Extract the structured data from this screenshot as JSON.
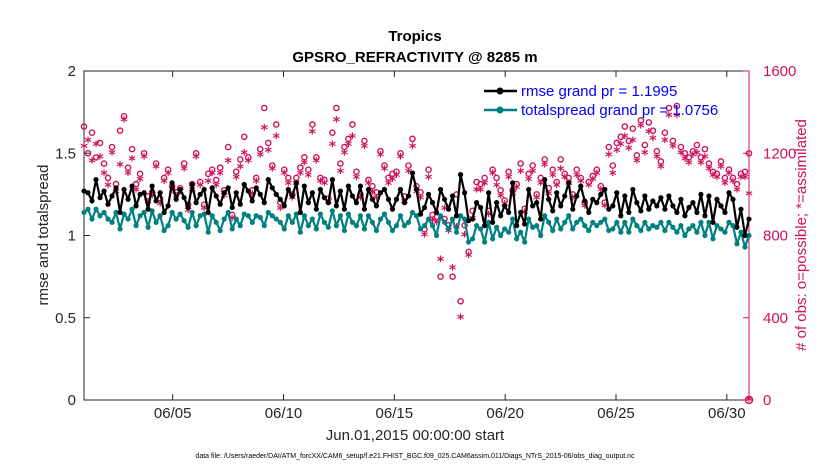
{
  "chart_data": {
    "type": "line",
    "title": "Tropics",
    "subtitle": "GPSRO_REFRACTIVITY @ 8285 m",
    "xlabel": "Jun.01,2015 00:00:00 start",
    "ylabel": "rmse and totalspread",
    "ylabel_right": "# of obs: o=possible; *=assimilated",
    "xlim": [
      1,
      31
    ],
    "ylim": [
      0,
      2
    ],
    "ylim_right": [
      0,
      1600
    ],
    "x_tick_values": [
      5,
      10,
      15,
      20,
      25,
      30
    ],
    "x_tick_labels": [
      "06/05",
      "06/10",
      "06/15",
      "06/20",
      "06/25",
      "06/30"
    ],
    "y_tick_labels": [
      "0",
      "0.5",
      "1",
      "1.5",
      "2"
    ],
    "y_tick_labels_right": [
      "0",
      "400",
      "800",
      "1200",
      "1600"
    ],
    "footer": "data file: /Users/raeder/DAI/ATM_forcXX/CAM6_setup/f.e21.FHIST_BGC.f09_025.CAM6assim.011/Diags_NTrS_2015-06/obs_diag_output.nc",
    "colors": {
      "rmse": "#000000",
      "spread": "#008080",
      "obs": "#d0105a",
      "legend_text": "#0000ff"
    },
    "series": [
      {
        "name": "rmse grand pr = 1.1995",
        "marker": "filled-circle",
        "color": "#000000",
        "values": [
          1.27,
          1.26,
          1.21,
          1.34,
          1.23,
          1.27,
          1.19,
          1.24,
          1.29,
          1.14,
          1.28,
          1.22,
          1.3,
          1.18,
          1.25,
          1.26,
          1.16,
          1.3,
          1.21,
          1.26,
          1.14,
          1.18,
          1.32,
          1.22,
          1.28,
          1.23,
          1.17,
          1.31,
          1.2,
          1.25,
          1.28,
          1.14,
          1.29,
          1.24,
          1.19,
          1.26,
          1.29,
          1.17,
          1.26,
          1.19,
          1.31,
          1.27,
          1.21,
          1.29,
          1.25,
          1.2,
          1.34,
          1.29,
          1.25,
          1.22,
          1.18,
          1.28,
          1.24,
          1.32,
          1.14,
          1.3,
          1.2,
          1.26,
          1.16,
          1.28,
          1.23,
          1.2,
          1.34,
          1.18,
          1.27,
          1.16,
          1.3,
          1.24,
          1.2,
          1.3,
          1.16,
          1.28,
          1.22,
          1.18,
          1.26,
          1.28,
          1.22,
          1.16,
          1.22,
          1.28,
          1.2,
          1.24,
          1.38,
          1.28,
          1.13,
          1.17,
          1.25,
          1.2,
          1.14,
          1.28,
          1.22,
          1.16,
          1.24,
          1.12,
          1.37,
          1.26,
          1.09,
          1.1,
          1.2,
          1.17,
          1.06,
          1.26,
          1.08,
          1.2,
          1.12,
          1.18,
          1.14,
          1.32,
          1.06,
          1.14,
          1.07,
          1.28,
          1.18,
          1.2,
          1.1,
          1.34,
          1.22,
          1.15,
          1.26,
          1.18,
          1.24,
          1.32,
          1.16,
          1.24,
          1.3,
          1.21,
          1.14,
          1.22,
          1.2,
          1.25,
          1.28,
          1.16,
          1.18,
          1.26,
          1.12,
          1.24,
          1.14,
          1.28,
          1.2,
          1.15,
          1.24,
          1.16,
          1.21,
          1.18,
          1.23,
          1.16,
          1.24,
          1.18,
          1.14,
          1.22,
          1.12,
          1.17,
          1.2,
          1.14,
          1.25,
          1.12,
          1.24,
          1.08,
          1.22,
          1.18,
          1.14,
          1.26,
          1.22,
          1.05,
          1.16,
          1.0,
          1.1
        ]
      },
      {
        "name": "totalspread grand pr = 1.0756",
        "marker": "filled-circle",
        "color": "#008080",
        "values": [
          1.14,
          1.16,
          1.1,
          1.16,
          1.12,
          1.14,
          1.1,
          1.08,
          1.14,
          1.04,
          1.13,
          1.1,
          1.16,
          1.06,
          1.12,
          1.14,
          1.05,
          1.15,
          1.08,
          1.12,
          1.03,
          1.06,
          1.14,
          1.1,
          1.13,
          1.09,
          1.05,
          1.14,
          1.06,
          1.12,
          1.13,
          1.02,
          1.12,
          1.08,
          1.03,
          1.1,
          1.14,
          1.04,
          1.1,
          1.06,
          1.13,
          1.12,
          1.08,
          1.12,
          1.11,
          1.06,
          1.14,
          1.12,
          1.1,
          1.08,
          1.04,
          1.12,
          1.08,
          1.13,
          1.02,
          1.12,
          1.06,
          1.1,
          1.04,
          1.13,
          1.08,
          1.05,
          1.15,
          1.06,
          1.12,
          1.03,
          1.13,
          1.08,
          1.06,
          1.12,
          1.04,
          1.12,
          1.08,
          1.03,
          1.1,
          1.13,
          1.08,
          1.03,
          1.06,
          1.12,
          1.06,
          1.08,
          1.14,
          1.12,
          1.04,
          1.06,
          1.1,
          1.06,
          1.0,
          1.12,
          1.08,
          1.04,
          1.1,
          1.02,
          1.12,
          1.1,
          0.96,
          0.98,
          1.06,
          1.04,
          0.96,
          1.08,
          0.98,
          1.05,
          1.0,
          1.04,
          1.02,
          1.1,
          0.98,
          1.02,
          0.96,
          1.1,
          1.05,
          1.06,
          1.0,
          1.12,
          1.08,
          1.03,
          1.1,
          1.04,
          1.08,
          1.12,
          1.04,
          1.08,
          1.1,
          1.06,
          1.03,
          1.08,
          1.06,
          1.08,
          1.1,
          1.03,
          1.04,
          1.08,
          1.02,
          1.08,
          1.02,
          1.1,
          1.06,
          1.03,
          1.08,
          1.04,
          1.06,
          1.05,
          1.08,
          1.03,
          1.08,
          1.05,
          1.02,
          1.06,
          1.0,
          1.04,
          1.06,
          1.02,
          1.08,
          1.0,
          1.08,
          0.98,
          1.06,
          1.04,
          1.02,
          1.08,
          1.06,
          0.95,
          1.02,
          0.93,
          1.0
        ]
      },
      {
        "name": "obs possible",
        "axis": "right",
        "marker": "o",
        "color": "#d0105a",
        "values": [
          1330,
          1200,
          1300,
          1180,
          1250,
          1150,
          1080,
          1230,
          1050,
          1310,
          1380,
          1130,
          1220,
          1050,
          1100,
          1200,
          990,
          1010,
          1150,
          980,
          1080,
          1120,
          1040,
          1010,
          1030,
          1150,
          950,
          1050,
          1200,
          1060,
          950,
          1100,
          1120,
          1070,
          1130,
          1020,
          1230,
          900,
          1110,
          1170,
          1280,
          1180,
          1020,
          1080,
          1220,
          1420,
          1250,
          1140,
          1340,
          960,
          1120,
          1080,
          1000,
          1080,
          1130,
          1180,
          1120,
          1340,
          1180,
          1080,
          1070,
          980,
          1300,
          1420,
          1150,
          1230,
          1270,
          1340,
          1110,
          1000,
          1260,
          1070,
          1040,
          1010,
          1210,
          1140,
          1080,
          1100,
          1110,
          1200,
          990,
          1140,
          1270,
          1040,
          1010,
          830,
          1120,
          900,
          890,
          600,
          880,
          850,
          600,
          1000,
          480,
          850,
          720,
          920,
          1060,
          1050,
          1080,
          920,
          1120,
          1080,
          1020,
          970,
          1110,
          1020,
          1050,
          1150,
          930,
          1100,
          1140,
          1000,
          1080,
          1170,
          1030,
          1120,
          1060,
          1170,
          1100,
          1080,
          1000,
          1120,
          1080,
          960,
          1060,
          1090,
          1120,
          1040,
          960,
          1230,
          1140,
          1250,
          1280,
          1330,
          1260,
          1320,
          1190,
          1360,
          1240,
          1350,
          1310,
          1210,
          1160,
          1300,
          1420,
          1260,
          1430,
          1230,
          1200,
          1180,
          1210,
          1240,
          1180,
          1220,
          1150,
          1110,
          1100,
          1160,
          1080,
          1120,
          1080,
          1050,
          1100,
          1110,
          1200
        ]
      },
      {
        "name": "obs assimilated",
        "axis": "right",
        "marker": "*",
        "color": "#d0105a",
        "values": [
          1230,
          1260,
          1160,
          1240,
          1180,
          1100,
          1040,
          1200,
          1010,
          1140,
          1360,
          1100,
          1170,
          1020,
          1070,
          1180,
          960,
          990,
          1130,
          950,
          1060,
          1100,
          1020,
          990,
          1010,
          1120,
          920,
          1020,
          1180,
          1040,
          930,
          1060,
          1100,
          1040,
          1100,
          990,
          1160,
          880,
          1080,
          1130,
          1200,
          1160,
          1000,
          1060,
          1190,
          1320,
          1210,
          1120,
          1280,
          930,
          1100,
          1050,
          980,
          1050,
          1100,
          1150,
          1090,
          1300,
          1160,
          1060,
          1050,
          960,
          1240,
          1360,
          1110,
          1200,
          1240,
          1280,
          1080,
          980,
          1230,
          1050,
          1010,
          980,
          1190,
          1120,
          1050,
          1070,
          1090,
          1180,
          960,
          1110,
          1230,
          1010,
          980,
          800,
          1080,
          870,
          860,
          680,
          930,
          820,
          640,
          840,
          400,
          800,
          700,
          880,
          1020,
          1020,
          1050,
          900,
          1100,
          1040,
          990,
          950,
          1080,
          1000,
          1030,
          1110,
          910,
          1070,
          1110,
          980,
          1050,
          1140,
          1000,
          1090,
          1040,
          1120,
          1080,
          1050,
          980,
          1090,
          1060,
          940,
          1040,
          1070,
          1100,
          1020,
          940,
          1190,
          1100,
          1210,
          1240,
          1280,
          1220,
          1260,
          1160,
          1330,
          1200,
          1300,
          1270,
          1180,
          1130,
          1260,
          1380,
          1230,
          1380,
          1200,
          1170,
          1150,
          1190,
          1200,
          1150,
          1180,
          1120,
          1090,
          1080,
          1130,
          1050,
          1100,
          1060,
          1020,
          1080,
          1080,
          1000
        ]
      }
    ]
  }
}
